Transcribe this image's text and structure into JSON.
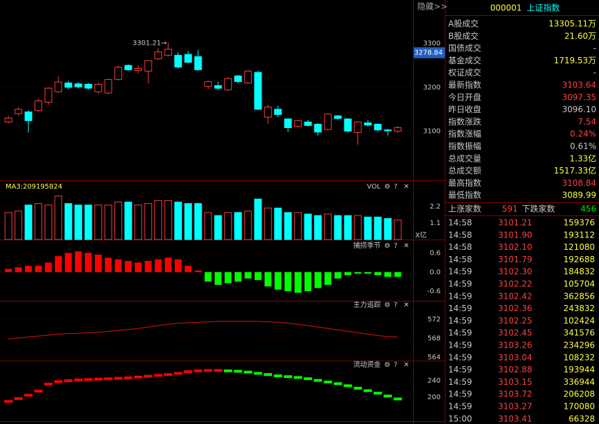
{
  "header": {
    "hide_button": "隐藏>>",
    "code": "000001",
    "name": "上证指数"
  },
  "tools": [
    "⚙",
    "?",
    "✕"
  ],
  "price_chart": {
    "type": "candlestick",
    "ylim": [
      2988,
      3399
    ],
    "yticks": [
      3100,
      3200,
      3300
    ],
    "up_color": "#ff3c3c",
    "down_color": "#00ffff",
    "candles": {
      "open": [
        3121,
        3140,
        3144,
        3147,
        3166,
        3190,
        3210,
        3208,
        3207,
        3190,
        3187,
        3218,
        3250,
        3238,
        3237,
        3265,
        3273,
        3273,
        3275,
        3270,
        3202,
        3204,
        3194,
        3226,
        3210,
        3234,
        3132,
        3150,
        3128,
        3111,
        3121,
        3116,
        3104,
        3135,
        3128,
        3097,
        3119,
        3116,
        3103,
        3100
      ],
      "close": [
        3130,
        3150,
        3124,
        3169,
        3198,
        3212,
        3200,
        3201,
        3198,
        3207,
        3218,
        3246,
        3240,
        3243,
        3261,
        3281,
        3287,
        3246,
        3257,
        3240,
        3213,
        3198,
        3220,
        3213,
        3237,
        3150,
        3155,
        3138,
        3108,
        3124,
        3113,
        3098,
        3139,
        3129,
        3100,
        3121,
        3114,
        3103,
        3101,
        3108
      ],
      "high": [
        3135,
        3155,
        3148,
        3175,
        3200,
        3225,
        3215,
        3212,
        3210,
        3210,
        3220,
        3250,
        3252,
        3250,
        3262,
        3290,
        3301.21,
        3280,
        3283,
        3285,
        3215,
        3213,
        3222,
        3228,
        3240,
        3238,
        3160,
        3158,
        3130,
        3126,
        3126,
        3119,
        3141,
        3137,
        3130,
        3123,
        3126,
        3118,
        3105,
        3112
      ],
      "low": [
        3118,
        3135,
        3097,
        3143,
        3160,
        3188,
        3195,
        3198,
        3195,
        3186,
        3185,
        3215,
        3238,
        3232,
        3209,
        3262,
        3270,
        3243,
        3255,
        3238,
        3196,
        3195,
        3192,
        3210,
        3208,
        3148,
        3117,
        3132,
        3098,
        3108,
        3111,
        3090,
        3102,
        3127,
        3097,
        3069,
        3110,
        3100,
        3090,
        3096
      ]
    },
    "high_label": "3301.21→",
    "cursor_price": 3278.84
  },
  "volume": {
    "title": "MA3:209195824",
    "name": "VOL",
    "unit": "X亿",
    "ylim": [
      0,
      3.9
    ],
    "yticks": [
      1.1,
      2.2
    ],
    "values": [
      1.8,
      1.9,
      2.3,
      2.4,
      2.3,
      2.9,
      2.4,
      2.3,
      2.3,
      2.3,
      2.3,
      2.5,
      2.5,
      2.3,
      2.4,
      2.6,
      2.6,
      2.5,
      2.4,
      2.4,
      1.8,
      1.6,
      1.8,
      1.8,
      1.9,
      2.7,
      2.1,
      2.1,
      1.8,
      1.8,
      1.7,
      1.6,
      1.7,
      1.6,
      1.6,
      1.6,
      1.5,
      1.5,
      1.4,
      1.3
    ]
  },
  "fishing": {
    "title": "捕捞季节",
    "ylim": [
      -0.9,
      1.0
    ],
    "yticks": [
      0.6,
      {
        "value": 0,
        "label": "0.0"
      },
      -0.6
    ],
    "pos_color": "#ff0000",
    "neg_color": "#00ff00",
    "values": [
      0.1,
      0.15,
      0.2,
      0.2,
      0.3,
      0.5,
      0.6,
      0.65,
      0.6,
      0.55,
      0.45,
      0.4,
      0.35,
      0.3,
      0.35,
      0.4,
      0.45,
      0.4,
      0.2,
      0.05,
      -0.3,
      -0.4,
      -0.35,
      -0.3,
      -0.2,
      -0.25,
      -0.45,
      -0.55,
      -0.6,
      -0.65,
      -0.6,
      -0.5,
      -0.4,
      -0.2,
      -0.1,
      -0.05,
      -0.05,
      -0.1,
      -0.15,
      -0.15
    ]
  },
  "tracking": {
    "title": "主力追踪",
    "ylim": [
      563.3,
      575.8
    ],
    "yticks": [
      564,
      568,
      572
    ],
    "color": "#e01010",
    "values": [
      567.9,
      568.1,
      568.3,
      568.5,
      568.7,
      568.9,
      569.0,
      569.1,
      569.2,
      569.3,
      569.5,
      569.7,
      569.9,
      570.1,
      570.4,
      570.7,
      571.0,
      571.2,
      571.3,
      571.4,
      571.5,
      571.6,
      571.6,
      571.6,
      571.6,
      571.6,
      571.5,
      571.4,
      571.2,
      571.0,
      570.7,
      570.4,
      570.1,
      569.8,
      569.5,
      569.2,
      568.9,
      568.6,
      568.4,
      568.3
    ]
  },
  "flow": {
    "title": "流动资金",
    "ylim": [
      142,
      287
    ],
    "yticks": [
      200,
      240
    ],
    "up_color": "#ff0000",
    "down_color": "#00ff00",
    "values": [
      190,
      197,
      205,
      215,
      232,
      238,
      240,
      242,
      243,
      244,
      245,
      246,
      247,
      249,
      251,
      253,
      255,
      258,
      262,
      264,
      265,
      265,
      264,
      263,
      261,
      258,
      255,
      252,
      250,
      248,
      245,
      241,
      237,
      233,
      228,
      222,
      216,
      210,
      203,
      196
    ]
  },
  "stats": [
    {
      "label": "A股成交",
      "value": "13305.11万",
      "color": "#ffff40"
    },
    {
      "label": "B股成交",
      "value": "21.60万",
      "color": "#ffff40"
    },
    {
      "label": "国债成交",
      "value": "-",
      "color": "#c8c8c8"
    },
    {
      "label": "基金成交",
      "value": "1719.53万",
      "color": "#ffff40"
    },
    {
      "label": "权证成交",
      "value": "-",
      "color": "#c8c8c8"
    },
    {
      "label": "最新指数",
      "value": "3103.64",
      "color": "#ff4040"
    },
    {
      "label": "今日开盘",
      "value": "3097.35",
      "color": "#ff4040"
    },
    {
      "label": "昨日收盘",
      "value": "3096.10",
      "color": "#c8c8c8"
    },
    {
      "label": "指数涨跌",
      "value": "7.54",
      "color": "#ff4040"
    },
    {
      "label": "指数涨幅",
      "value": "0.24%",
      "color": "#ff4040"
    },
    {
      "label": "指数振幅",
      "value": "0.61%",
      "color": "#c8c8c8"
    },
    {
      "label": "总成交量",
      "value": "1.33亿",
      "color": "#ffff40"
    },
    {
      "label": "总成交额",
      "value": "1517.33亿",
      "color": "#ffff40"
    },
    {
      "label": "最高指数",
      "value": "3108.84",
      "color": "#ff4040"
    },
    {
      "label": "最低指数",
      "value": "3089.99",
      "color": "#ffff40"
    }
  ],
  "breadth": {
    "up_label": "上涨家数",
    "up": "591",
    "down_label": "下跌家数",
    "down": "456"
  },
  "trades": [
    [
      "14:58",
      "3101.21",
      "159376"
    ],
    [
      "14:58",
      "3101.90",
      "193112"
    ],
    [
      "14:58",
      "3102.10",
      "121080"
    ],
    [
      "14:58",
      "3101.79",
      "192688"
    ],
    [
      "14:59",
      "3102.30",
      "184832"
    ],
    [
      "14:59",
      "3102.22",
      "105704"
    ],
    [
      "14:59",
      "3102.42",
      "362856"
    ],
    [
      "14:59",
      "3102.36",
      "243832"
    ],
    [
      "14:59",
      "3102.25",
      "102424"
    ],
    [
      "14:59",
      "3102.45",
      "341576"
    ],
    [
      "14:59",
      "3103.26",
      "234296"
    ],
    [
      "14:59",
      "3103.04",
      "108232"
    ],
    [
      "14:59",
      "3102.88",
      "193944"
    ],
    [
      "14:59",
      "3103.15",
      "336944"
    ],
    [
      "14:59",
      "3103.72",
      "206208"
    ],
    [
      "14:59",
      "3103.27",
      "170080"
    ],
    [
      "15:00",
      "3103.41",
      "66328"
    ]
  ]
}
